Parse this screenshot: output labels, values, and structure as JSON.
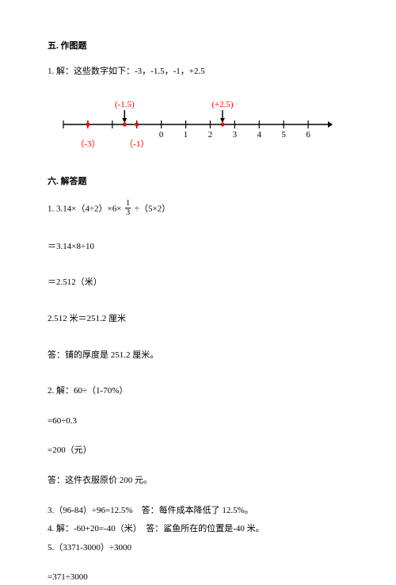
{
  "section5": {
    "title": "五. 作图题",
    "q1": "1. 解：这些数字如下：-3，-1.5，-1，+2.5",
    "diagram": {
      "xmin": -4,
      "xmax": 7,
      "ticks": [
        -4,
        -3,
        -2,
        -1,
        0,
        1,
        2,
        3,
        4,
        5,
        6
      ],
      "tick_labels_below": {
        "-3": "",
        "-2": "",
        "-1": "",
        "0": "0",
        "1": "1",
        "2": "2",
        "3": "3",
        "4": "4",
        "5": "5",
        "6": "6"
      },
      "red_labels_below": {
        "-3": "（-3）",
        "-1": "（-1）"
      },
      "red_labels_above": {
        "-1.5": "(-1.5)",
        "2.5": "(+2.5)"
      },
      "dots": [
        -3,
        -1.5,
        -1,
        2.5
      ],
      "axis_color": "#000000",
      "dot_color": "#ff0000",
      "label_red_color": "#ff0000",
      "font_size": 11
    }
  },
  "section6": {
    "title": "六. 解答题",
    "q1": {
      "l1a": "1. 3.14×（4÷2）×6×",
      "frac_n": "1",
      "frac_d": "3",
      "l1b": "÷（5×2）",
      "l2": "＝3.14×8÷10",
      "l3": "＝2.512（米）",
      "l4": "2.512 米＝251.2 厘米",
      "l5": "答：铺的厚度是 251.2 厘米。"
    },
    "q2": {
      "l1": "2. 解：60÷（1-70%）",
      "l2": "=60÷0.3",
      "l3": "=200（元）",
      "l4": "答：这件衣服原价 200 元。"
    },
    "q3": "3.（96-84）÷96=12.5%　答：每件成本降低了 12.5%。",
    "q4": "4. 解：-60+20=-40（米）　答：鲨鱼所在的位置是-40 米。",
    "q5": {
      "l1": "5.（3371-3000）÷3000",
      "l2": "=371÷3000"
    }
  }
}
